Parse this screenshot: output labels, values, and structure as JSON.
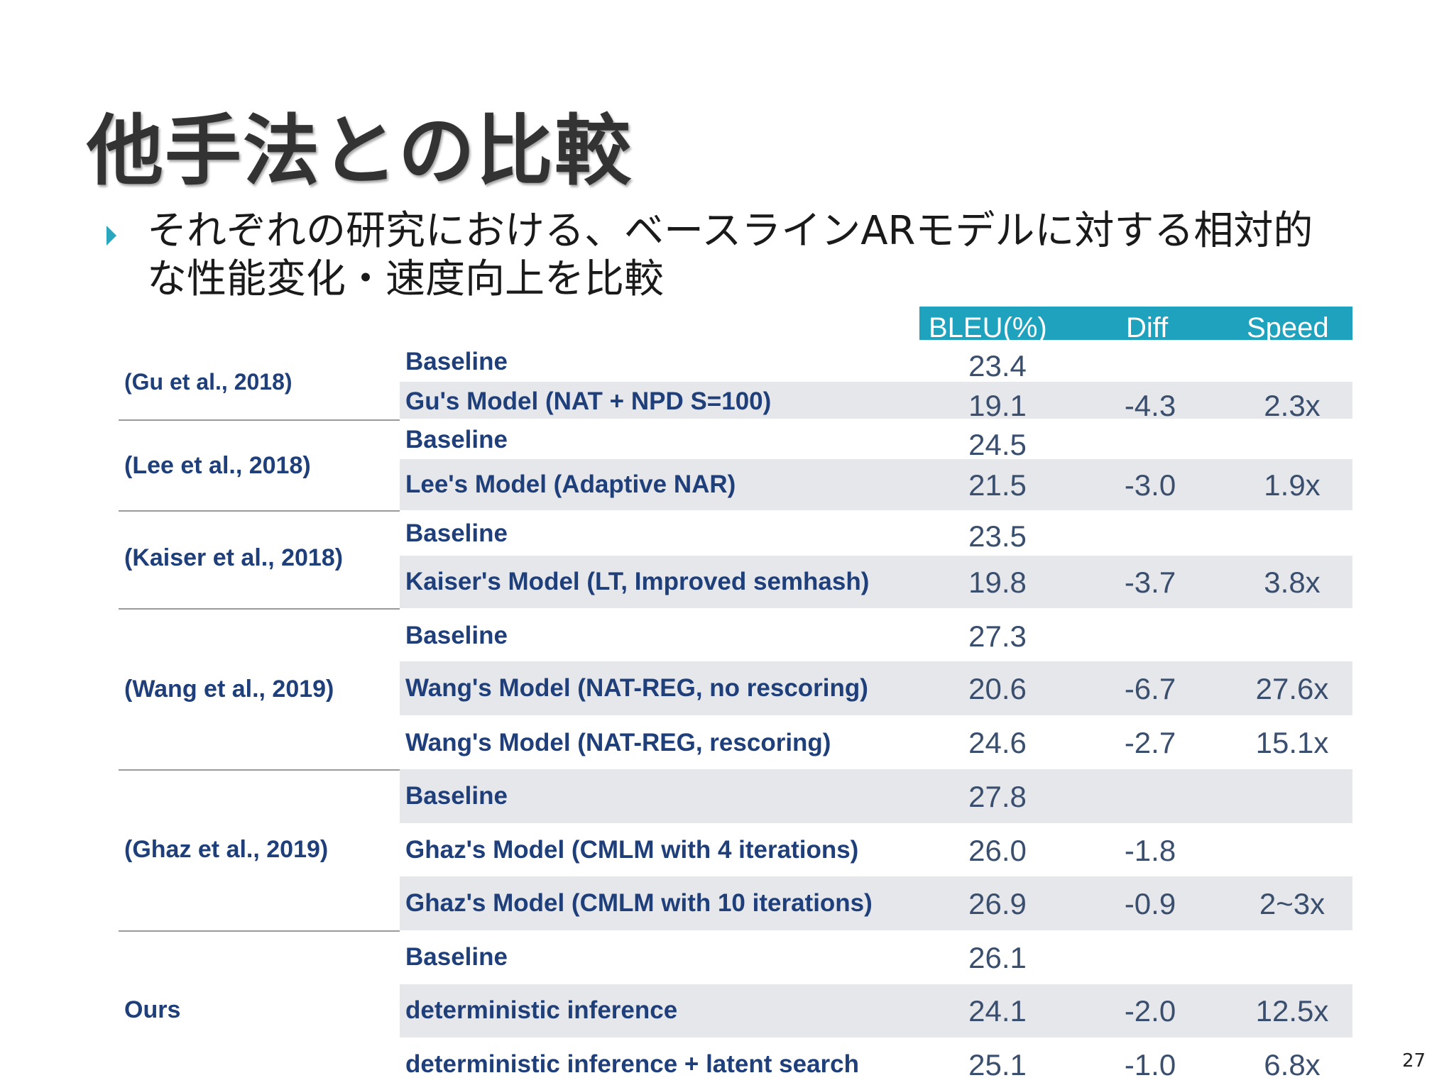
{
  "slide": {
    "title": "他手法との比較",
    "bullet_line1": "それぞれの研究における、ベースラインARモデルに対する相対的",
    "bullet_line2": "な性能変化・速度向上を比較",
    "page_number": "27"
  },
  "table": {
    "headers": {
      "bleu": "BLEU(%)",
      "diff": "Diff",
      "speed": "Speed"
    },
    "groups": [
      {
        "ref": "(Gu et al., 2018)",
        "rows": [
          {
            "model": "Baseline",
            "bleu": "23.4",
            "diff": "",
            "speed": ""
          },
          {
            "model": "Gu's Model (NAT + NPD S=100)",
            "bleu": "19.1",
            "diff": "-4.3",
            "speed": "2.3x"
          }
        ]
      },
      {
        "ref": "(Lee et al., 2018)",
        "rows": [
          {
            "model": "Baseline",
            "bleu": "24.5",
            "diff": "",
            "speed": ""
          },
          {
            "model": "Lee's Model (Adaptive NAR)",
            "bleu": "21.5",
            "diff": "-3.0",
            "speed": "1.9x"
          }
        ]
      },
      {
        "ref": "(Kaiser et al., 2018)",
        "rows": [
          {
            "model": "Baseline",
            "bleu": "23.5",
            "diff": "",
            "speed": ""
          },
          {
            "model": "Kaiser's Model (LT, Improved semhash)",
            "bleu": "19.8",
            "diff": "-3.7",
            "speed": "3.8x"
          }
        ]
      },
      {
        "ref": "(Wang et al., 2019)",
        "rows": [
          {
            "model": "Baseline",
            "bleu": "27.3",
            "diff": "",
            "speed": ""
          },
          {
            "model": "Wang's Model (NAT-REG, no rescoring)",
            "bleu": "20.6",
            "diff": "-6.7",
            "speed": "27.6x"
          },
          {
            "model": "Wang's Model (NAT-REG, rescoring)",
            "bleu": "24.6",
            "diff": "-2.7",
            "speed": "15.1x"
          }
        ]
      },
      {
        "ref": "(Ghaz et al., 2019)",
        "rows": [
          {
            "model": "Baseline",
            "bleu": "27.8",
            "diff": "",
            "speed": ""
          },
          {
            "model": "Ghaz's Model (CMLM with 4 iterations)",
            "bleu": "26.0",
            "diff": "-1.8",
            "speed": ""
          },
          {
            "model": "Ghaz's Model (CMLM with 10 iterations)",
            "bleu": "26.9",
            "diff": "-0.9",
            "speed": "2~3x"
          }
        ]
      },
      {
        "ref": "Ours",
        "rows": [
          {
            "model": "Baseline",
            "bleu": "26.1",
            "diff": "",
            "speed": ""
          },
          {
            "model": "deterministic inference",
            "bleu": "24.1",
            "diff": "-2.0",
            "speed": "12.5x"
          },
          {
            "model": "deterministic inference + latent search",
            "bleu": "25.1",
            "diff": "-1.0",
            "speed": "6.8x"
          }
        ]
      }
    ]
  }
}
